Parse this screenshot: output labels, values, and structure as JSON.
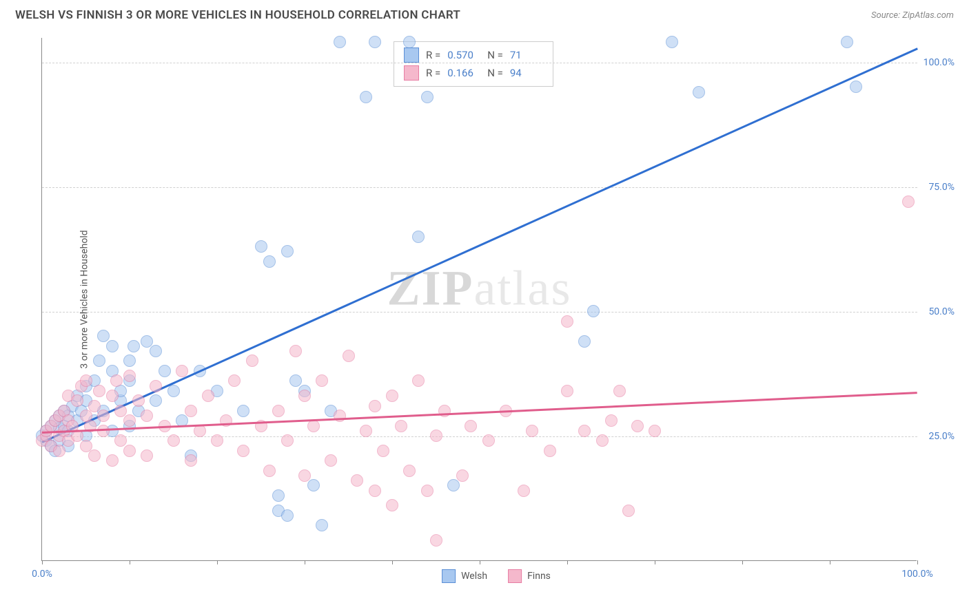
{
  "title": "WELSH VS FINNISH 3 OR MORE VEHICLES IN HOUSEHOLD CORRELATION CHART",
  "source": "Source: ZipAtlas.com",
  "watermark_bold": "ZIP",
  "watermark_light": "atlas",
  "chart": {
    "type": "scatter",
    "y_axis_title": "3 or more Vehicles in Household",
    "xlim": [
      0,
      100
    ],
    "ylim": [
      0,
      105
    ],
    "x_ticks": [
      0,
      10,
      20,
      30,
      40,
      50,
      60,
      70,
      80,
      90,
      100
    ],
    "x_tick_labels": {
      "0": "0.0%",
      "100": "100.0%"
    },
    "y_gridlines": [
      25,
      50,
      75,
      100
    ],
    "y_tick_labels": {
      "25": "25.0%",
      "50": "50.0%",
      "75": "75.0%",
      "100": "100.0%"
    },
    "background_color": "#ffffff",
    "grid_color": "#d0d0d0",
    "axis_color": "#888888",
    "tick_label_color": "#4a7fc9",
    "series": [
      {
        "name": "Welsh",
        "fill": "#a8c8f0",
        "stroke": "#5b8fd6",
        "fill_opacity": 0.55,
        "marker_radius": 9,
        "R": "0.570",
        "N": "71",
        "trend": {
          "x1": 0,
          "y1": 24,
          "x2": 100,
          "y2": 103,
          "color": "#2f6fd1",
          "width": 2.5
        },
        "points": [
          [
            0,
            25
          ],
          [
            0.5,
            24
          ],
          [
            0.5,
            26
          ],
          [
            1,
            23
          ],
          [
            1,
            27
          ],
          [
            1.5,
            22
          ],
          [
            1.5,
            28
          ],
          [
            2,
            24
          ],
          [
            2,
            26.5
          ],
          [
            2,
            29
          ],
          [
            2.5,
            27
          ],
          [
            2.5,
            30
          ],
          [
            3,
            23
          ],
          [
            3,
            26
          ],
          [
            3,
            29
          ],
          [
            3.5,
            31
          ],
          [
            4,
            28
          ],
          [
            4,
            33
          ],
          [
            4.5,
            30
          ],
          [
            5,
            25
          ],
          [
            5,
            32
          ],
          [
            5,
            35
          ],
          [
            6,
            28
          ],
          [
            6,
            36
          ],
          [
            6.5,
            40
          ],
          [
            7,
            30
          ],
          [
            7,
            45
          ],
          [
            8,
            26
          ],
          [
            8,
            38
          ],
          [
            8,
            43
          ],
          [
            9,
            32
          ],
          [
            9,
            34
          ],
          [
            10,
            27
          ],
          [
            10,
            36
          ],
          [
            10,
            40
          ],
          [
            10.5,
            43
          ],
          [
            11,
            30
          ],
          [
            12,
            44
          ],
          [
            13,
            32
          ],
          [
            13,
            42
          ],
          [
            14,
            38
          ],
          [
            15,
            34
          ],
          [
            16,
            28
          ],
          [
            17,
            21
          ],
          [
            18,
            38
          ],
          [
            20,
            34
          ],
          [
            23,
            30
          ],
          [
            25,
            63
          ],
          [
            26,
            60
          ],
          [
            27,
            13
          ],
          [
            27,
            10
          ],
          [
            28,
            9
          ],
          [
            28,
            62
          ],
          [
            29,
            36
          ],
          [
            30,
            34
          ],
          [
            31,
            15
          ],
          [
            32,
            7
          ],
          [
            33,
            30
          ],
          [
            34,
            104
          ],
          [
            37,
            93
          ],
          [
            38,
            104
          ],
          [
            42,
            104
          ],
          [
            43,
            65
          ],
          [
            44,
            93
          ],
          [
            47,
            15
          ],
          [
            62,
            44
          ],
          [
            63,
            50
          ],
          [
            72,
            104
          ],
          [
            75,
            94
          ],
          [
            92,
            104
          ],
          [
            93,
            95
          ]
        ]
      },
      {
        "name": "Finns",
        "fill": "#f5b8cc",
        "stroke": "#e77da3",
        "fill_opacity": 0.55,
        "marker_radius": 9,
        "R": "0.166",
        "N": "94",
        "trend": {
          "x1": 0,
          "y1": 26,
          "x2": 100,
          "y2": 34,
          "color": "#e05d8c",
          "width": 2.5
        },
        "points": [
          [
            0,
            24
          ],
          [
            0.5,
            25
          ],
          [
            0.5,
            26
          ],
          [
            1,
            23
          ],
          [
            1,
            27
          ],
          [
            1.5,
            28
          ],
          [
            2,
            22
          ],
          [
            2,
            25
          ],
          [
            2,
            29
          ],
          [
            2.5,
            26
          ],
          [
            2.5,
            30
          ],
          [
            3,
            24
          ],
          [
            3,
            28
          ],
          [
            3,
            33
          ],
          [
            3.5,
            27
          ],
          [
            4,
            25
          ],
          [
            4,
            32
          ],
          [
            4.5,
            35
          ],
          [
            5,
            23
          ],
          [
            5,
            29
          ],
          [
            5,
            36
          ],
          [
            5.5,
            27
          ],
          [
            6,
            21
          ],
          [
            6,
            31
          ],
          [
            6.5,
            34
          ],
          [
            7,
            26
          ],
          [
            7,
            29
          ],
          [
            8,
            20
          ],
          [
            8,
            33
          ],
          [
            8.5,
            36
          ],
          [
            9,
            24
          ],
          [
            9,
            30
          ],
          [
            10,
            22
          ],
          [
            10,
            28
          ],
          [
            10,
            37
          ],
          [
            11,
            32
          ],
          [
            12,
            21
          ],
          [
            12,
            29
          ],
          [
            13,
            35
          ],
          [
            14,
            27
          ],
          [
            15,
            24
          ],
          [
            16,
            38
          ],
          [
            17,
            20
          ],
          [
            17,
            30
          ],
          [
            18,
            26
          ],
          [
            19,
            33
          ],
          [
            20,
            24
          ],
          [
            21,
            28
          ],
          [
            22,
            36
          ],
          [
            23,
            22
          ],
          [
            24,
            40
          ],
          [
            25,
            27
          ],
          [
            26,
            18
          ],
          [
            27,
            30
          ],
          [
            28,
            24
          ],
          [
            29,
            42
          ],
          [
            30,
            17
          ],
          [
            30,
            33
          ],
          [
            31,
            27
          ],
          [
            32,
            36
          ],
          [
            33,
            20
          ],
          [
            34,
            29
          ],
          [
            35,
            41
          ],
          [
            36,
            16
          ],
          [
            37,
            26
          ],
          [
            38,
            14
          ],
          [
            38,
            31
          ],
          [
            39,
            22
          ],
          [
            40,
            33
          ],
          [
            40,
            11
          ],
          [
            41,
            27
          ],
          [
            42,
            18
          ],
          [
            43,
            36
          ],
          [
            44,
            14
          ],
          [
            45,
            25
          ],
          [
            45,
            4
          ],
          [
            46,
            30
          ],
          [
            48,
            17
          ],
          [
            49,
            27
          ],
          [
            51,
            24
          ],
          [
            53,
            30
          ],
          [
            55,
            14
          ],
          [
            56,
            26
          ],
          [
            58,
            22
          ],
          [
            60,
            34
          ],
          [
            60,
            48
          ],
          [
            62,
            26
          ],
          [
            64,
            24
          ],
          [
            65,
            28
          ],
          [
            66,
            34
          ],
          [
            67,
            10
          ],
          [
            68,
            27
          ],
          [
            70,
            26
          ],
          [
            99,
            72
          ]
        ]
      }
    ],
    "bottom_legend": [
      {
        "label": "Welsh",
        "fill": "#a8c8f0",
        "stroke": "#5b8fd6"
      },
      {
        "label": "Finns",
        "fill": "#f5b8cc",
        "stroke": "#e77da3"
      }
    ]
  }
}
